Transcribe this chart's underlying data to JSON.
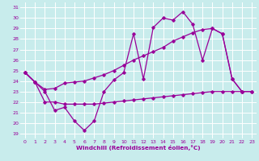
{
  "xlabel": "Windchill (Refroidissement éolien,°C)",
  "bg_color": "#c8ecec",
  "grid_color": "#ffffff",
  "line_color": "#990099",
  "xlim": [
    -0.5,
    23.5
  ],
  "ylim": [
    18.5,
    31.5
  ],
  "xticks": [
    0,
    1,
    2,
    3,
    4,
    5,
    6,
    7,
    8,
    9,
    10,
    11,
    12,
    13,
    14,
    15,
    16,
    17,
    18,
    19,
    20,
    21,
    22,
    23
  ],
  "yticks": [
    19,
    20,
    21,
    22,
    23,
    24,
    25,
    26,
    27,
    28,
    29,
    30,
    31
  ],
  "line1_x": [
    0,
    1,
    2,
    3,
    4,
    5,
    6,
    7,
    8,
    9,
    10,
    11,
    12,
    13,
    14,
    15,
    16,
    17,
    18,
    19,
    20,
    21,
    22
  ],
  "line1_y": [
    24.8,
    23.9,
    23.0,
    21.2,
    21.5,
    20.2,
    19.3,
    20.2,
    23.0,
    24.1,
    24.8,
    28.5,
    24.2,
    29.1,
    30.0,
    29.8,
    30.6,
    29.4,
    26.0,
    29.0,
    28.5,
    24.2,
    23.0
  ],
  "line2_x": [
    0,
    1,
    2,
    3,
    4,
    5,
    6,
    7,
    8,
    9,
    10,
    11,
    12,
    13,
    14,
    15,
    16,
    17,
    18,
    19,
    20,
    21,
    22,
    23
  ],
  "line2_y": [
    24.8,
    23.9,
    23.2,
    23.3,
    23.8,
    23.9,
    24.0,
    24.3,
    24.6,
    25.0,
    25.5,
    26.0,
    26.4,
    26.8,
    27.2,
    27.8,
    28.2,
    28.6,
    28.9,
    29.0,
    28.5,
    24.2,
    23.0,
    23.0
  ],
  "line3_x": [
    0,
    1,
    2,
    3,
    4,
    5,
    6,
    7,
    8,
    9,
    10,
    11,
    12,
    13,
    14,
    15,
    16,
    17,
    18,
    19,
    20,
    21,
    22,
    23
  ],
  "line3_y": [
    24.8,
    23.9,
    22.0,
    22.0,
    21.8,
    21.8,
    21.8,
    21.8,
    21.9,
    22.0,
    22.1,
    22.2,
    22.3,
    22.4,
    22.5,
    22.6,
    22.7,
    22.8,
    22.9,
    23.0,
    23.0,
    23.0,
    23.0,
    23.0
  ]
}
